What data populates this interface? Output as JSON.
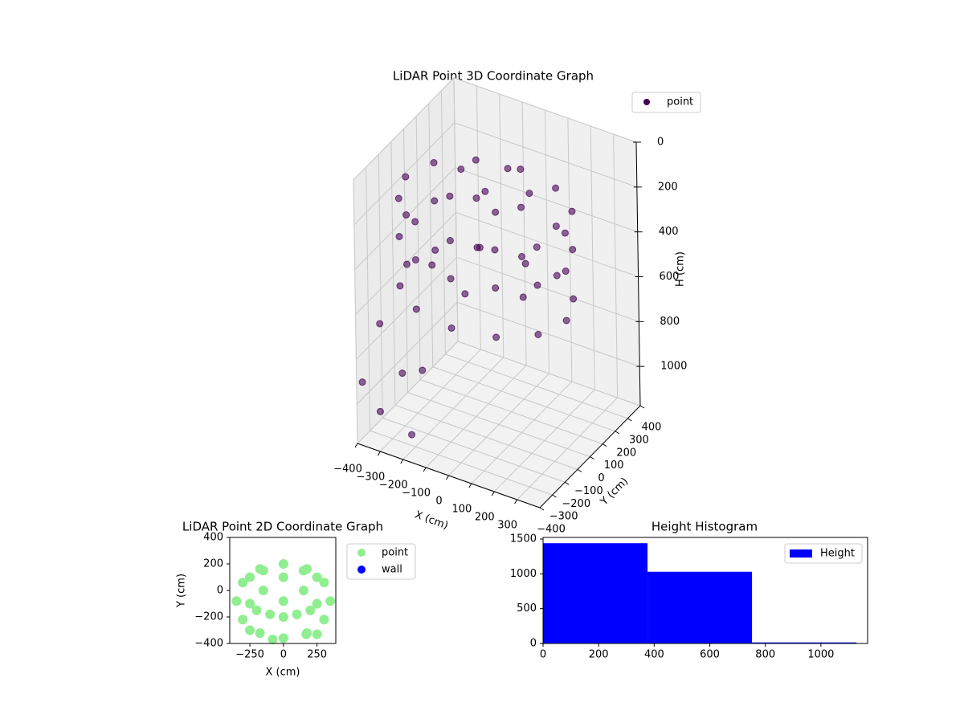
{
  "chart_data": [
    {
      "type": "scatter3d",
      "title": "LiDAR Point 3D Coordinate Graph",
      "xlabel": "X (cm)",
      "ylabel": "Y (cm)",
      "zlabel": "H (cm)",
      "xlim": [
        -400,
        400
      ],
      "ylim": [
        -400,
        400
      ],
      "zlim": [
        0,
        1175
      ],
      "z_inverted": true,
      "xticks": [
        {
          "value": -400,
          "label": "−400"
        },
        {
          "value": -300,
          "label": "−300"
        },
        {
          "value": -200,
          "label": "−200"
        },
        {
          "value": -100,
          "label": "−100"
        },
        0,
        100,
        200,
        300
      ],
      "yticks": [
        {
          "value": -400,
          "label": "−400"
        },
        {
          "value": -300,
          "label": "−300"
        },
        {
          "value": -200,
          "label": "−200"
        },
        {
          "value": -100,
          "label": "−100"
        },
        0,
        100,
        200,
        300,
        400
      ],
      "zticks": [
        0,
        200,
        400,
        600,
        800,
        1000
      ],
      "series": [
        {
          "name": "point",
          "color": "#440154",
          "x": [
            350,
            303,
            175,
            0,
            -175,
            -303,
            -350,
            -303,
            -175,
            0,
            175,
            303,
            350,
            303,
            175,
            0,
            -175,
            -303,
            -350,
            -303,
            -175,
            0,
            175,
            303,
            350,
            303,
            175,
            0,
            -175,
            -303,
            -350,
            -303,
            -175,
            0,
            175,
            303,
            0,
            150,
            -150,
            0,
            100,
            -100,
            200,
            -200,
            0,
            100,
            -100,
            -350,
            -220,
            -120,
            -380,
            -300,
            -160
          ],
          "y": [
            -80,
            60,
            162,
            200,
            162,
            60,
            -80,
            -220,
            -322,
            -360,
            -322,
            -220,
            -80,
            60,
            162,
            200,
            162,
            60,
            -80,
            -220,
            -322,
            -360,
            -322,
            -220,
            -80,
            60,
            162,
            200,
            162,
            60,
            -80,
            -220,
            -322,
            -360,
            -322,
            -220,
            -80,
            0,
            0,
            100,
            -180,
            -180,
            -150,
            -150,
            -250,
            50,
            50,
            -300,
            -360,
            -380,
            -390,
            -395,
            -400
          ],
          "z": [
            150,
            150,
            150,
            150,
            150,
            150,
            150,
            150,
            150,
            150,
            150,
            150,
            320,
            320,
            320,
            320,
            320,
            320,
            320,
            320,
            320,
            320,
            320,
            320,
            540,
            540,
            540,
            540,
            540,
            540,
            540,
            540,
            540,
            540,
            540,
            540,
            90,
            90,
            90,
            90,
            90,
            90,
            450,
            450,
            450,
            450,
            450,
            680,
            820,
            760,
            900,
            1000,
            1050
          ]
        }
      ]
    },
    {
      "type": "scatter",
      "title": "LiDAR Point 2D Coordinate Graph",
      "xlabel": "X (cm)",
      "ylabel": "Y (cm)",
      "xlim": [
        -400,
        390
      ],
      "ylim": [
        -400,
        400
      ],
      "xticks": [
        {
          "value": -250,
          "label": "−250"
        },
        0,
        250
      ],
      "yticks": [
        {
          "value": -400,
          "label": "−400"
        },
        {
          "value": -200,
          "label": "−200"
        },
        0,
        200,
        400
      ],
      "series": [
        {
          "name": "point",
          "color": "#90ee90",
          "x": [
            350,
            303,
            175,
            0,
            -175,
            -303,
            -350,
            -303,
            -175,
            0,
            175,
            303,
            0,
            150,
            -150,
            0,
            100,
            -100,
            200,
            -200,
            250,
            -250,
            -80,
            170,
            -250,
            250,
            -250,
            250,
            0,
            -150,
            150
          ],
          "y": [
            -80,
            60,
            162,
            200,
            162,
            60,
            -80,
            -220,
            -322,
            -360,
            -322,
            -220,
            -80,
            0,
            0,
            100,
            -180,
            -180,
            -150,
            -150,
            -330,
            -300,
            -370,
            -330,
            100,
            100,
            -100,
            -100,
            -200,
            150,
            150
          ]
        },
        {
          "name": "wall",
          "color": "#0000ff",
          "x": [],
          "y": []
        }
      ]
    },
    {
      "type": "histogram",
      "title": "Height Histogram",
      "xlim": [
        0,
        1168
      ],
      "ylim": [
        0,
        1523
      ],
      "xticks": [
        0,
        200,
        400,
        600,
        800,
        1000
      ],
      "yticks": [
        0,
        500,
        1000,
        1500
      ],
      "bins": [
        0,
        376,
        752,
        1128
      ],
      "counts": [
        1440,
        1030,
        15
      ],
      "series_name": "Height",
      "color": "#0000ff"
    }
  ]
}
